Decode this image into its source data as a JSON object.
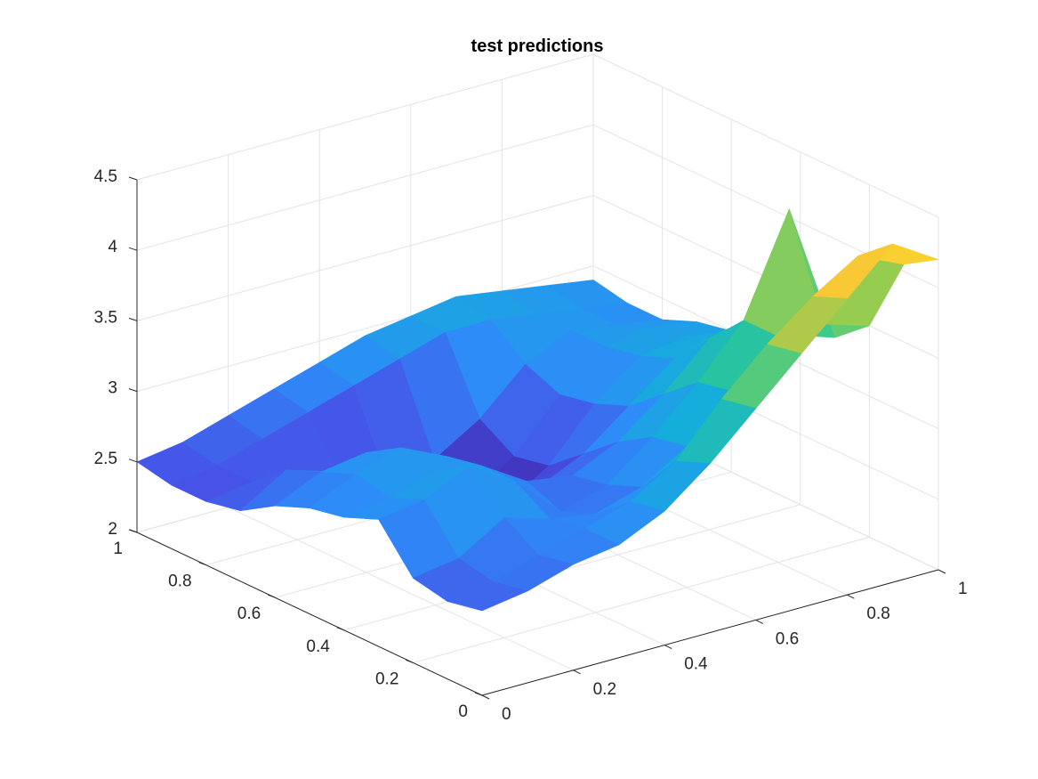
{
  "chart_data": {
    "type": "surface",
    "title": "test predictions",
    "xlabel": "",
    "ylabel": "",
    "zlabel": "",
    "xlim": [
      0,
      1
    ],
    "ylim": [
      0,
      1
    ],
    "zlim": [
      2,
      4.5
    ],
    "x_ticks": [
      "0",
      "0.2",
      "0.4",
      "0.6",
      "0.8",
      "1"
    ],
    "y_ticks": [
      "0",
      "0.2",
      "0.4",
      "0.6",
      "0.8",
      "1"
    ],
    "z_ticks": [
      "2",
      "2.5",
      "3",
      "3.5",
      "4",
      "4.5"
    ],
    "grid": true,
    "colormap": "parula",
    "x": [
      0,
      0.1,
      0.2,
      0.3,
      0.4,
      0.5,
      0.6,
      0.7,
      0.8,
      0.9,
      1
    ],
    "y": [
      0,
      0.1,
      0.2,
      0.3,
      0.4,
      0.5,
      0.6,
      0.7,
      0.8,
      0.9,
      1
    ],
    "z": [
      [
        2.6,
        2.65,
        2.75,
        2.8,
        2.95,
        3.2,
        3.5,
        3.8,
        4.1,
        4.4,
        4.2
      ],
      [
        2.55,
        2.6,
        2.7,
        2.8,
        2.9,
        3.1,
        3.45,
        3.75,
        4.0,
        4.2,
        4.05
      ],
      [
        2.6,
        2.65,
        2.85,
        2.75,
        2.7,
        2.8,
        3.0,
        3.3,
        3.6,
        3.6,
        3.5
      ],
      [
        2.9,
        2.95,
        3.1,
        2.9,
        2.6,
        2.7,
        2.95,
        3.25,
        3.6,
        4.3,
        3.3
      ],
      [
        2.8,
        2.85,
        2.95,
        2.9,
        2.7,
        2.65,
        2.8,
        3.05,
        3.35,
        3.4,
        3.2
      ],
      [
        2.75,
        2.9,
        3.0,
        2.85,
        2.55,
        2.45,
        2.6,
        2.85,
        3.1,
        3.2,
        3.1
      ],
      [
        2.65,
        2.8,
        2.85,
        2.6,
        2.35,
        2.2,
        2.4,
        2.75,
        3.0,
        3.05,
        3.0
      ],
      [
        2.5,
        2.7,
        2.6,
        2.4,
        2.2,
        2.15,
        2.35,
        2.7,
        2.95,
        3.0,
        2.95
      ],
      [
        2.45,
        2.5,
        2.45,
        2.3,
        2.2,
        2.3,
        2.5,
        2.8,
        2.95,
        2.9,
        2.85
      ],
      [
        2.45,
        2.5,
        2.6,
        2.7,
        2.8,
        2.9,
        3.0,
        3.0,
        2.95,
        2.9,
        2.85
      ],
      [
        2.5,
        2.55,
        2.65,
        2.75,
        2.85,
        2.95,
        3.0,
        3.05,
        3.0,
        2.95,
        2.9
      ]
    ]
  }
}
